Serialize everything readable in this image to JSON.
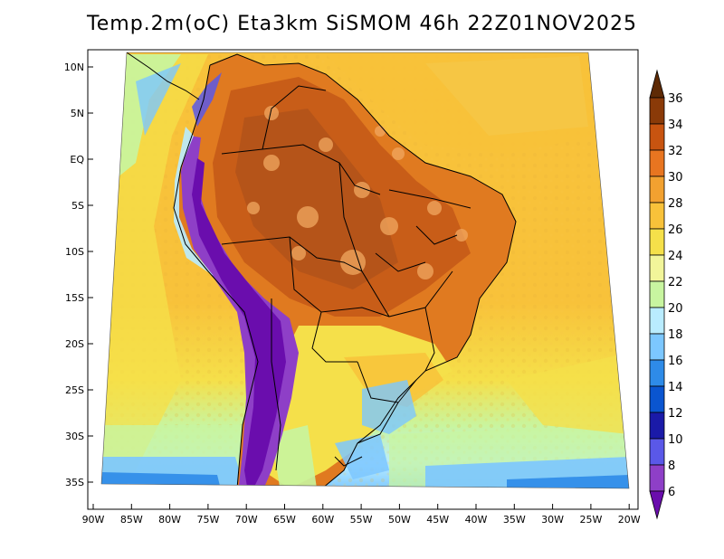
{
  "title": "Temp.2m(oC) Eta3km SiSMOM 46h 22Z01NOV2025",
  "map": {
    "lat_labels": [
      "10N",
      "5N",
      "EQ",
      "5S",
      "10S",
      "15S",
      "20S",
      "25S",
      "30S",
      "35S"
    ],
    "lon_labels": [
      "90W",
      "85W",
      "80W",
      "75W",
      "70W",
      "65W",
      "60W",
      "55W",
      "50W",
      "45W",
      "40W",
      "35W",
      "30W",
      "25W",
      "20W"
    ],
    "variable": "2 m temperature",
    "units": "oC"
  },
  "colorbar": {
    "labels": [
      "6",
      "8",
      "10",
      "12",
      "14",
      "16",
      "18",
      "20",
      "22",
      "24",
      "26",
      "28",
      "30",
      "32",
      "34",
      "36"
    ],
    "colors": [
      "#6a0dad",
      "#8e3fc7",
      "#5a58e8",
      "#1a1aa8",
      "#0a55d0",
      "#2e8be8",
      "#7cc7ff",
      "#b9ecff",
      "#c8f5a0",
      "#f2f59a",
      "#f5e04a",
      "#f8c23a",
      "#f2a130",
      "#e87520",
      "#c85410",
      "#8a3a08",
      "#5e2a05"
    ]
  }
}
